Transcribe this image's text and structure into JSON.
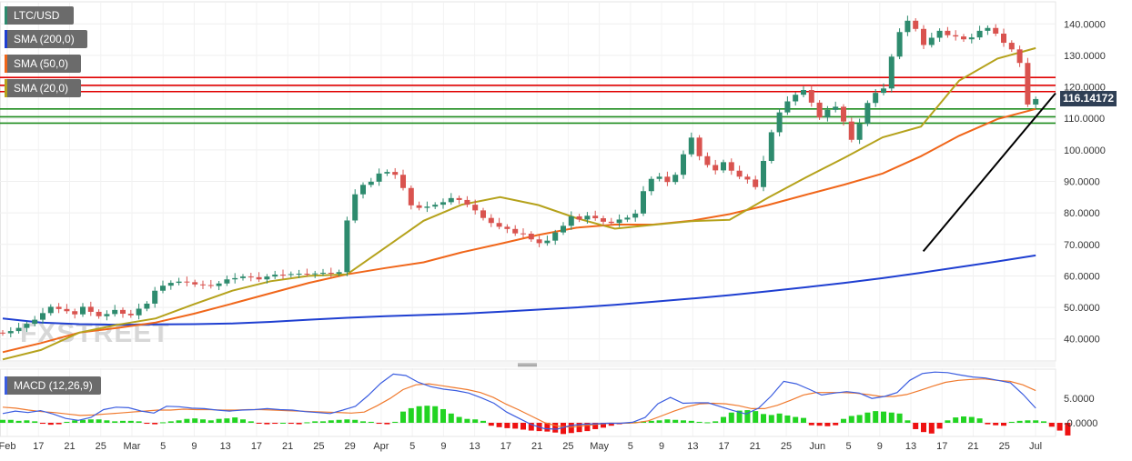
{
  "colors": {
    "up": "#2e8b6e",
    "down": "#d9534f",
    "sma200": "#1f3fd1",
    "sma50": "#f0661a",
    "sma20": "#b5a21c",
    "resistance": "#e00000",
    "support": "#1e8c1e",
    "trendline": "#000000",
    "macd_line": "#3b5de0",
    "signal_line": "#f07a2e",
    "hist_up": "#22d422",
    "hist_down": "#ee1111"
  },
  "legend": {
    "pair": "LTC/USD",
    "sma200": "SMA (200,0)",
    "sma50": "SMA (50,0)",
    "sma20": "SMA (20,0)"
  },
  "macd_legend": "MACD (12,26,9)",
  "current_price": "116.14172",
  "watermark": "FXSTREET",
  "chart_data": [
    {
      "type": "candlestick",
      "pair": "LTC/USD",
      "ylim": [
        33,
        147
      ],
      "y_ticks": [
        40,
        50,
        60,
        70,
        80,
        90,
        100,
        110,
        120,
        130,
        140
      ],
      "y_tick_labels": [
        "40.0000",
        "50.0000",
        "60.0000",
        "70.0000",
        "80.0000",
        "90.0000",
        "100.0000",
        "110.0000",
        "120.0000",
        "130.0000",
        "140.0000"
      ],
      "x_tick_labels": [
        "Feb",
        "17",
        "21",
        "25",
        "Mar",
        "5",
        "9",
        "13",
        "17",
        "21",
        "25",
        "29",
        "Apr",
        "5",
        "9",
        "13",
        "17",
        "21",
        "25",
        "May",
        "5",
        "9",
        "13",
        "17",
        "21",
        "25",
        "Jun",
        "5",
        "9",
        "13",
        "17",
        "21",
        "25",
        "Jul"
      ],
      "horizontal_levels": {
        "resistance": [
          123,
          120.5,
          118.5
        ],
        "support": [
          113,
          110.5,
          108.5
        ]
      },
      "trendline": {
        "from": [
          88,
          67.8
        ],
        "to": [
          158,
          118
        ]
      },
      "close": [
        41.8,
        42.5,
        43.5,
        44.8,
        46.1,
        48.2,
        50.2,
        49.5,
        48.8,
        47.8,
        50.2,
        48.6,
        47.2,
        47.9,
        49.2,
        48.0,
        47.5,
        49.6,
        51.2,
        55.3,
        56.9,
        57.8,
        58.2,
        58.0,
        57.3,
        57.1,
        56.8,
        57.6,
        58.9,
        59.3,
        59.8,
        59.6,
        58.9,
        59.8,
        60.4,
        60.3,
        60.6,
        60.7,
        60.6,
        60.8,
        61.0,
        60.7,
        61.2,
        77.6,
        85.9,
        88.9,
        89.9,
        92.5,
        93.0,
        92.1,
        87.9,
        82.4,
        81.6,
        82.0,
        82.6,
        83.4,
        84.7,
        84.1,
        82.6,
        80.8,
        78.4,
        76.8,
        75.6,
        74.9,
        73.5,
        73.4,
        71.6,
        70.4,
        71.2,
        73.8,
        75.9,
        78.9,
        77.9,
        79.1,
        78.3,
        77.2,
        76.8,
        77.9,
        78.5,
        79.8,
        86.9,
        90.8,
        91.5,
        89.8,
        92.1,
        98.6,
        103.9,
        98.0,
        95.2,
        93.5,
        96.1,
        93.4,
        91.5,
        90.6,
        88.2,
        96.5,
        105.6,
        111.9,
        115.4,
        117.5,
        119.0,
        115.0,
        110.3,
        112.7,
        113.7,
        109.0,
        103.2,
        108.3,
        114.9,
        118.1,
        119.5,
        129.6,
        137.4,
        141.0,
        138.4,
        133.3,
        135.6,
        137.8,
        136.4,
        136.0,
        135.1,
        135.7,
        137.8,
        138.7,
        136.9,
        134.0,
        131.9,
        127.6,
        114.4,
        116.14
      ],
      "open_first": 42.0,
      "high_first": 43.5,
      "low_first": 40.8,
      "sma200": [
        46.5,
        45.2,
        44.7,
        44.5,
        44.6,
        44.7,
        44.9,
        45.4,
        46.1,
        46.7,
        47.2,
        47.6,
        48.0,
        48.6,
        49.3,
        50.0,
        50.8,
        51.8,
        52.8,
        53.9,
        55.1,
        56.4,
        57.8,
        59.3,
        61.0,
        62.8,
        64.6,
        66.5
      ],
      "sma50": [
        35.8,
        38.7,
        42.0,
        43.5,
        45.2,
        48.0,
        51.2,
        54.5,
        57.8,
        60.5,
        62.5,
        64.3,
        67.5,
        70.2,
        73.0,
        75.3,
        76.3,
        76.3,
        77.5,
        79.6,
        82.5,
        85.8,
        89.0,
        92.5,
        98.0,
        104.5,
        109.8,
        113.0
      ],
      "sma20": [
        33.5,
        36.5,
        42.0,
        44.5,
        46.5,
        51.0,
        55.3,
        58.3,
        60.0,
        60.5,
        69.0,
        77.5,
        82.6,
        85.0,
        82.5,
        78.3,
        75.0,
        76.2,
        77.4,
        77.8,
        84.8,
        91.3,
        97.5,
        104.0,
        107.4,
        122.0,
        129.0,
        132.3
      ]
    },
    {
      "type": "macd",
      "name": "MACD (12,26,9)",
      "ylim": [
        -2.8,
        11
      ],
      "y_ticks": [
        0,
        5
      ],
      "y_tick_labels": [
        "-0.0000",
        "5.0000"
      ],
      "macd": [
        1.9,
        2.4,
        2.1,
        2.5,
        1.8,
        0.9,
        0.5,
        1.1,
        2.7,
        3.2,
        3.1,
        2.4,
        2.0,
        3.4,
        3.3,
        3.0,
        2.9,
        2.6,
        2.4,
        2.6,
        2.7,
        2.9,
        2.7,
        2.6,
        2.3,
        2.1,
        1.9,
        2.6,
        3.4,
        5.6,
        8.1,
        10.0,
        9.7,
        8.3,
        7.4,
        6.9,
        6.6,
        6.1,
        5.1,
        4.0,
        2.2,
        0.9,
        -0.4,
        -1.2,
        -1.3,
        -0.6,
        -0.3,
        -0.2,
        -0.1,
        -0.1,
        0.1,
        1.1,
        3.9,
        5.2,
        4.0,
        4.1,
        4.1,
        3.3,
        2.5,
        1.8,
        3.0,
        5.5,
        8.5,
        8.0,
        6.9,
        5.7,
        6.1,
        6.4,
        6.1,
        5.0,
        5.4,
        6.2,
        8.7,
        10.1,
        10.4,
        10.3,
        9.8,
        9.4,
        9.2,
        8.7,
        8.2,
        5.8,
        3.0
      ],
      "signal": [
        3.2,
        3.0,
        2.6,
        2.3,
        2.1,
        1.8,
        1.5,
        1.6,
        1.8,
        2.0,
        2.2,
        2.4,
        2.6,
        2.6,
        2.8,
        2.7,
        2.7,
        2.6,
        2.6,
        2.7,
        2.7,
        2.6,
        2.5,
        2.4,
        2.3,
        2.2,
        2.1,
        2.0,
        2.2,
        3.5,
        5.0,
        6.8,
        7.8,
        8.0,
        7.6,
        7.2,
        6.8,
        6.2,
        5.2,
        3.8,
        2.6,
        1.3,
        0.0,
        -0.7,
        -0.9,
        -0.6,
        -0.3,
        -0.1,
        -0.1,
        0.0,
        0.4,
        1.4,
        2.4,
        3.3,
        3.9,
        4.0,
        3.9,
        3.5,
        2.9,
        2.9,
        3.6,
        4.6,
        5.7,
        6.2,
        6.2,
        6.2,
        6.1,
        5.8,
        5.4,
        5.4,
        5.8,
        6.6,
        7.5,
        8.3,
        8.7,
        8.9,
        9.0,
        8.7,
        8.5,
        7.8,
        6.6
      ],
      "histogram": [
        0.6,
        0.6,
        0.4,
        0.5,
        0.3,
        -0.2,
        -0.4,
        -0.3,
        0.2,
        0.5,
        0.6,
        0.7,
        0.7,
        0.5,
        0.3,
        0.4,
        0.4,
        0.3,
        -0.2,
        -0.3,
        0.1,
        0.3,
        0.5,
        0.8,
        0.9,
        0.7,
        0.5,
        0.8,
        0.9,
        1.1,
        0.7,
        0.3,
        -0.1,
        -0.3,
        -0.2,
        0.0,
        -0.2,
        -0.3,
        0.1,
        0.3,
        0.3,
        0.5,
        0.6,
        0.7,
        0.6,
        0.3,
        0.2,
        -0.2,
        -0.3,
        0.2,
        2.3,
        3.0,
        3.4,
        3.5,
        3.4,
        2.8,
        1.9,
        1.2,
        0.8,
        0.7,
        0.4,
        -0.6,
        -0.9,
        -1.1,
        -1.2,
        -1.4,
        -1.6,
        -1.7,
        -1.8,
        -2.0,
        -2.3,
        -2.1,
        -1.9,
        -1.7,
        -1.3,
        -1.0,
        -0.6,
        -0.3,
        0.0,
        0.2,
        0.3,
        0.4,
        0.5,
        0.7,
        0.6,
        0.5,
        0.4,
        0.2,
        0.1,
        0.3,
        1.2,
        2.1,
        2.5,
        2.6,
        2.4,
        1.8,
        1.6,
        1.9,
        1.5,
        1.2,
        1.0,
        -0.5,
        -0.6,
        -0.7,
        -0.5,
        0.8,
        1.4,
        1.6,
        2.1,
        2.4,
        2.3,
        2.1,
        1.9,
        0.5,
        -1.3,
        -1.9,
        -2.2,
        -1.2,
        0.5,
        1.1,
        1.3,
        1.2,
        0.9,
        -0.3,
        -0.5,
        -0.6,
        0.2,
        0.4,
        0.5,
        0.5,
        0.3,
        -0.8,
        -1.6,
        -2.6
      ]
    }
  ]
}
